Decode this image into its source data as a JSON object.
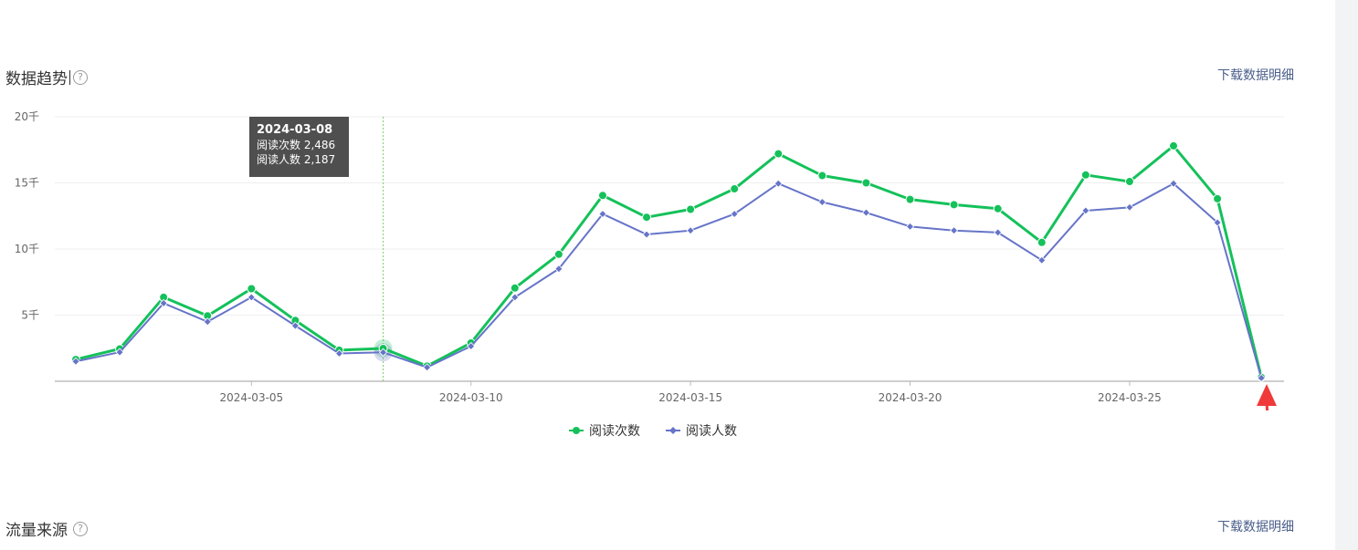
{
  "header": {
    "trend_title": "数据趋势",
    "download_label": "下载数据明细",
    "help_icon": "?"
  },
  "footer_section": {
    "title": "流量来源",
    "download_label": "下载数据明细",
    "help_icon": "?"
  },
  "tooltip": {
    "date": "2024-03-08",
    "line1": "阅读次数 2,486",
    "line2": "阅读人数 2,187"
  },
  "colors": {
    "series_reads": "#14c15a",
    "series_readers": "#6674c8",
    "annotation_arrow": "#f03a3a"
  },
  "chart_data": {
    "type": "line",
    "x": [
      "2024-03-01",
      "2024-03-02",
      "2024-03-03",
      "2024-03-04",
      "2024-03-05",
      "2024-03-06",
      "2024-03-07",
      "2024-03-08",
      "2024-03-09",
      "2024-03-10",
      "2024-03-11",
      "2024-03-12",
      "2024-03-13",
      "2024-03-14",
      "2024-03-15",
      "2024-03-16",
      "2024-03-17",
      "2024-03-18",
      "2024-03-19",
      "2024-03-20",
      "2024-03-21",
      "2024-03-22",
      "2024-03-23",
      "2024-03-24",
      "2024-03-25",
      "2024-03-26",
      "2024-03-27",
      "2024-03-28"
    ],
    "x_tick_labels": [
      "2024-03-05",
      "2024-03-10",
      "2024-03-15",
      "2024-03-20",
      "2024-03-25"
    ],
    "y_tick_labels": [
      "5千",
      "10千",
      "15千",
      "20千"
    ],
    "y_ticks": [
      5000,
      10000,
      15000,
      20000
    ],
    "ylim": [
      0,
      20000
    ],
    "grid": true,
    "legend_position": "bottom-center",
    "highlight_x": "2024-03-08",
    "series": [
      {
        "name": "阅读次数",
        "marker": "circle",
        "values": [
          1650,
          2450,
          6350,
          4950,
          7000,
          4600,
          2350,
          2486,
          1150,
          2900,
          7050,
          9600,
          14050,
          12400,
          13000,
          14550,
          17200,
          15550,
          15000,
          13750,
          13350,
          13050,
          10500,
          15600,
          15100,
          17800,
          13800,
          300
        ]
      },
      {
        "name": "阅读人数",
        "marker": "diamond",
        "values": [
          1500,
          2200,
          5900,
          4500,
          6350,
          4200,
          2100,
          2187,
          1050,
          2650,
          6350,
          8500,
          12650,
          11100,
          11400,
          12650,
          14950,
          13550,
          12750,
          11700,
          11400,
          11250,
          9150,
          12900,
          13150,
          14950,
          12000,
          250
        ]
      }
    ]
  }
}
